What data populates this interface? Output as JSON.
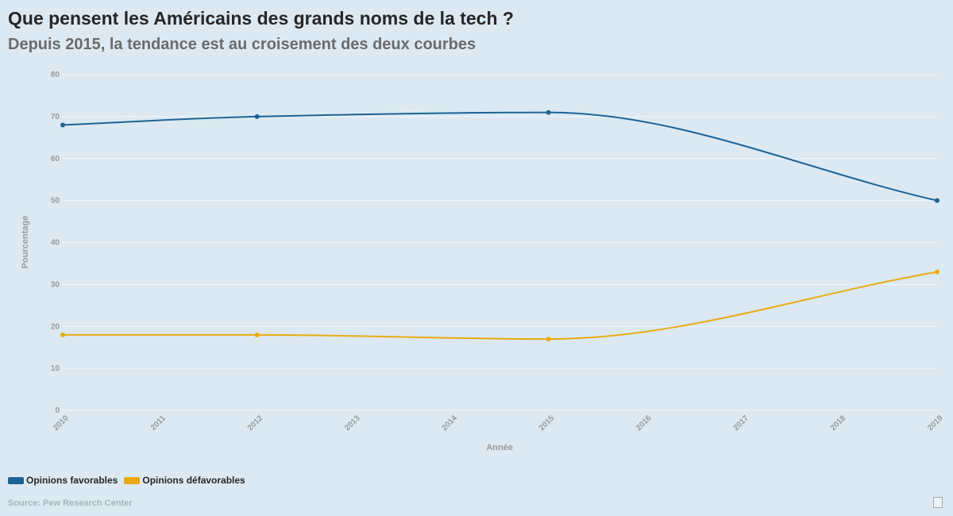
{
  "header": {
    "title": "Que pensent les Américains des grands noms de la tech ?",
    "subtitle": "Depuis 2015, la tendance est au croisement des deux courbes"
  },
  "footer": {
    "source": "Source: Pew Research Center"
  },
  "chart_data": {
    "type": "line",
    "xlabel": "Année",
    "ylabel": "Pourcentage",
    "x_ticks": [
      "2010",
      "2011",
      "2012",
      "2013",
      "2014",
      "2015",
      "2016",
      "2017",
      "2018",
      "2019"
    ],
    "y_ticks": [
      "0",
      "10",
      "20",
      "30",
      "40",
      "50",
      "60",
      "70",
      "80"
    ],
    "xlim": [
      2010,
      2019
    ],
    "ylim": [
      0,
      80
    ],
    "grid": true,
    "legend_position": "bottom-left",
    "series": [
      {
        "name": "Opinions favorables",
        "color": "#1d6396",
        "points": [
          {
            "x": 2010,
            "y": 68
          },
          {
            "x": 2012,
            "y": 70
          },
          {
            "x": 2015,
            "y": 71
          },
          {
            "x": 2019,
            "y": 50
          }
        ]
      },
      {
        "name": "Opinions défavorables",
        "color": "#e9ab12",
        "points": [
          {
            "x": 2010,
            "y": 18
          },
          {
            "x": 2012,
            "y": 18
          },
          {
            "x": 2015,
            "y": 17
          },
          {
            "x": 2019,
            "y": 33
          }
        ]
      }
    ]
  }
}
